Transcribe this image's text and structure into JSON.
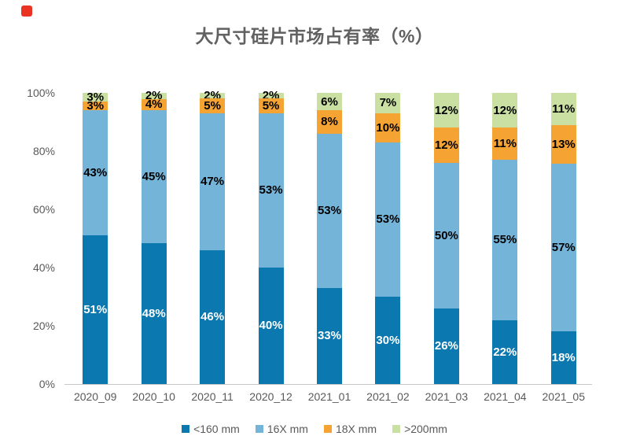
{
  "marker": {
    "color": "#ea3323"
  },
  "chart_data": {
    "type": "bar",
    "stacked": true,
    "title": "大尺寸硅片市场占有率（%）",
    "categories": [
      "2020_09",
      "2020_10",
      "2020_11",
      "2020_12",
      "2021_01",
      "2021_02",
      "2021_03",
      "2021_04",
      "2021_05"
    ],
    "series": [
      {
        "name": "<160 mm",
        "color": "#0b78b0",
        "label_color": "#ffffff",
        "values": [
          51,
          48,
          46,
          40,
          33,
          30,
          26,
          22,
          18
        ]
      },
      {
        "name": "16X mm",
        "color": "#74b4d9",
        "label_color": "#000000",
        "values": [
          43,
          45,
          47,
          53,
          53,
          53,
          50,
          55,
          57
        ]
      },
      {
        "name": "18X mm",
        "color": "#f5a333",
        "label_color": "#000000",
        "values": [
          3,
          4,
          5,
          5,
          8,
          10,
          12,
          11,
          13
        ]
      },
      {
        "name": ">200mm",
        "color": "#c9e0a2",
        "label_color": "#000000",
        "values": [
          3,
          2,
          2,
          2,
          6,
          7,
          12,
          12,
          11
        ]
      }
    ],
    "unit": "%",
    "y_axis": {
      "tick_labels": [
        "100%",
        "80%",
        "60%",
        "40%",
        "20%",
        "0%"
      ],
      "min": 0,
      "max": 100
    },
    "legend": {
      "position": "bottom",
      "entries": [
        "<160 mm",
        "16X mm",
        "18X mm",
        ">200mm"
      ]
    },
    "grid": false,
    "axis_line_color": "#c9c9c9",
    "text_color": "#595959"
  }
}
